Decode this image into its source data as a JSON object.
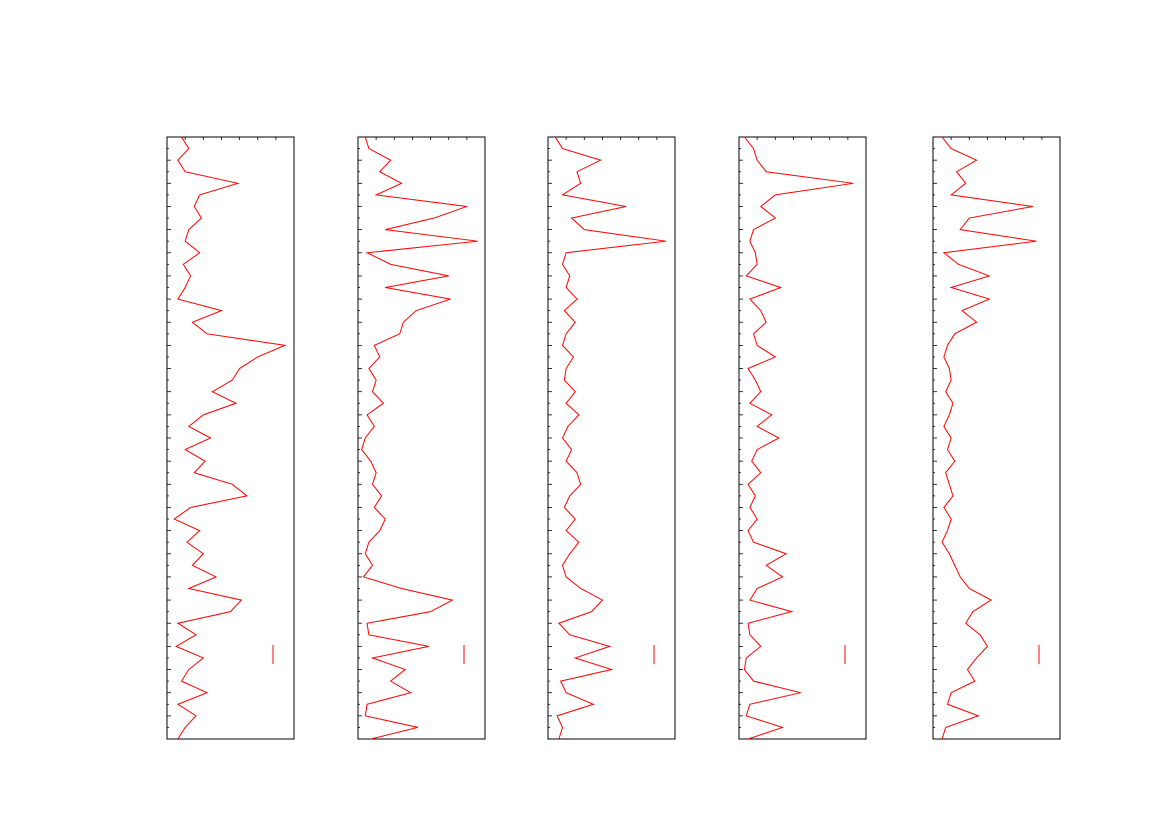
{
  "chart_data": [
    {
      "type": "line",
      "orientation": "vertical",
      "x": [
        0,
        1,
        2,
        3,
        4,
        5,
        6,
        7,
        8,
        9,
        10,
        11,
        12,
        13,
        14,
        15,
        16,
        17,
        18,
        19,
        20,
        21,
        22,
        23,
        24,
        25,
        26,
        27,
        28,
        29,
        30,
        31,
        32,
        33,
        34,
        35,
        36,
        37,
        38,
        39,
        40,
        41,
        42,
        43,
        44,
        45,
        46,
        47,
        48,
        49,
        50,
        51,
        52
      ],
      "series": [
        {
          "color": "#ff0000",
          "values": [
            0.8,
            1.2,
            0.6,
            1.0,
            3.9,
            1.8,
            1.5,
            1.9,
            1.2,
            1.0,
            1.8,
            0.9,
            1.3,
            1.0,
            0.6,
            3.0,
            1.4,
            2.2,
            6.5,
            5.0,
            4.0,
            3.6,
            2.5,
            3.8,
            2.0,
            1.2,
            2.4,
            1.0,
            2.1,
            1.5,
            3.6,
            4.4,
            1.3,
            0.4,
            1.8,
            1.1,
            2.0,
            1.4,
            2.7,
            1.2,
            4.1,
            3.5,
            0.6,
            1.6,
            0.5,
            2.0,
            1.2,
            0.8,
            2.2,
            0.6,
            1.6,
            1.0,
            0.6
          ]
        }
      ],
      "xlim": [
        0,
        52
      ],
      "ylim": [
        0,
        7
      ],
      "xticks": [
        0,
        1,
        2,
        3,
        4,
        5,
        6,
        7,
        8,
        9,
        10,
        11,
        12,
        13,
        14,
        15,
        16,
        17,
        18,
        19,
        20,
        21,
        22,
        23,
        24,
        25,
        26,
        27,
        28,
        29,
        30,
        31,
        32,
        33,
        34,
        35,
        36,
        37,
        38,
        39,
        40,
        41,
        42,
        43,
        44,
        45,
        46,
        47,
        48,
        49,
        50,
        51,
        52
      ],
      "yticks": [
        0,
        1,
        2,
        3,
        4,
        5,
        6,
        7
      ]
    },
    {
      "type": "line",
      "orientation": "vertical",
      "x": [
        0,
        1,
        2,
        3,
        4,
        5,
        6,
        7,
        8,
        9,
        10,
        11,
        12,
        13,
        14,
        15,
        16,
        17,
        18,
        19,
        20,
        21,
        22,
        23,
        24,
        25,
        26,
        27,
        28,
        29,
        30,
        31,
        32,
        33,
        34,
        35,
        36,
        37,
        38,
        39,
        40,
        41,
        42,
        43,
        44,
        45,
        46,
        47,
        48,
        49,
        50,
        51,
        52
      ],
      "series": [
        {
          "color": "#ff0000",
          "values": [
            0.4,
            0.6,
            1.8,
            1.2,
            2.4,
            1.0,
            6.0,
            4.2,
            1.5,
            6.6,
            0.5,
            1.8,
            5.0,
            1.5,
            5.1,
            3.2,
            2.5,
            2.3,
            0.9,
            1.2,
            0.6,
            1.0,
            0.8,
            1.4,
            0.5,
            0.9,
            0.4,
            0.2,
            0.7,
            1.0,
            0.8,
            1.3,
            0.9,
            1.5,
            1.2,
            0.6,
            0.4,
            0.8,
            0.3,
            2.4,
            5.2,
            4.0,
            0.5,
            0.6,
            3.9,
            0.8,
            2.6,
            1.8,
            2.9,
            0.5,
            0.4,
            3.3,
            0.7
          ]
        }
      ],
      "xlim": [
        0,
        52
      ],
      "ylim": [
        0,
        7
      ],
      "xticks": [
        0,
        1,
        2,
        3,
        4,
        5,
        6,
        7,
        8,
        9,
        10,
        11,
        12,
        13,
        14,
        15,
        16,
        17,
        18,
        19,
        20,
        21,
        22,
        23,
        24,
        25,
        26,
        27,
        28,
        29,
        30,
        31,
        32,
        33,
        34,
        35,
        36,
        37,
        38,
        39,
        40,
        41,
        42,
        43,
        44,
        45,
        46,
        47,
        48,
        49,
        50,
        51,
        52
      ],
      "yticks": [
        0,
        1,
        2,
        3,
        4,
        5,
        6,
        7
      ]
    },
    {
      "type": "line",
      "orientation": "vertical",
      "x": [
        0,
        1,
        2,
        3,
        4,
        5,
        6,
        7,
        8,
        9,
        10,
        11,
        12,
        13,
        14,
        15,
        16,
        17,
        18,
        19,
        20,
        21,
        22,
        23,
        24,
        25,
        26,
        27,
        28,
        29,
        30,
        31,
        32,
        33,
        34,
        35,
        36,
        37,
        38,
        39,
        40,
        41,
        42,
        43,
        44,
        45,
        46,
        47,
        48,
        49,
        50,
        51,
        52
      ],
      "series": [
        {
          "color": "#ff0000",
          "values": [
            0.4,
            0.8,
            2.9,
            1.6,
            1.8,
            0.8,
            4.3,
            1.3,
            2.0,
            6.5,
            1.0,
            0.8,
            1.2,
            1.0,
            1.6,
            0.9,
            1.5,
            1.0,
            0.8,
            1.4,
            1.0,
            0.9,
            1.5,
            1.0,
            1.7,
            1.1,
            0.8,
            1.3,
            1.0,
            1.6,
            1.8,
            1.2,
            0.9,
            1.5,
            1.0,
            1.7,
            1.2,
            0.8,
            1.0,
            1.8,
            3.0,
            2.4,
            0.6,
            1.2,
            3.4,
            1.5,
            3.5,
            0.7,
            1.0,
            2.5,
            0.5,
            0.8,
            0.6
          ]
        }
      ],
      "xlim": [
        0,
        52
      ],
      "ylim": [
        0,
        7
      ],
      "xticks": [
        0,
        1,
        2,
        3,
        4,
        5,
        6,
        7,
        8,
        9,
        10,
        11,
        12,
        13,
        14,
        15,
        16,
        17,
        18,
        19,
        20,
        21,
        22,
        23,
        24,
        25,
        26,
        27,
        28,
        29,
        30,
        31,
        32,
        33,
        34,
        35,
        36,
        37,
        38,
        39,
        40,
        41,
        42,
        43,
        44,
        45,
        46,
        47,
        48,
        49,
        50,
        51,
        52
      ],
      "yticks": [
        0,
        1,
        2,
        3,
        4,
        5,
        6,
        7
      ]
    },
    {
      "type": "line",
      "orientation": "vertical",
      "x": [
        0,
        1,
        2,
        3,
        4,
        5,
        6,
        7,
        8,
        9,
        10,
        11,
        12,
        13,
        14,
        15,
        16,
        17,
        18,
        19,
        20,
        21,
        22,
        23,
        24,
        25,
        26,
        27,
        28,
        29,
        30,
        31,
        32,
        33,
        34,
        35,
        36,
        37,
        38,
        39,
        40,
        41,
        42,
        43,
        44,
        45,
        46,
        47,
        48,
        49,
        50,
        51,
        52
      ],
      "series": [
        {
          "color": "#ff0000",
          "values": [
            0.3,
            0.8,
            1.0,
            1.5,
            6.3,
            2.0,
            1.2,
            2.0,
            0.8,
            0.6,
            0.9,
            1.0,
            0.4,
            2.3,
            0.6,
            1.2,
            1.5,
            0.8,
            1.0,
            2.0,
            0.5,
            0.9,
            1.2,
            0.6,
            1.8,
            1.0,
            2.2,
            1.0,
            0.7,
            1.2,
            0.5,
            0.9,
            0.6,
            1.0,
            0.5,
            0.8,
            2.6,
            1.5,
            2.4,
            1.0,
            0.6,
            2.9,
            0.5,
            0.6,
            1.2,
            0.4,
            0.3,
            0.8,
            3.4,
            0.6,
            0.4,
            2.4,
            0.5
          ]
        }
      ],
      "xlim": [
        0,
        52
      ],
      "ylim": [
        0,
        7
      ],
      "xticks": [
        0,
        1,
        2,
        3,
        4,
        5,
        6,
        7,
        8,
        9,
        10,
        11,
        12,
        13,
        14,
        15,
        16,
        17,
        18,
        19,
        20,
        21,
        22,
        23,
        24,
        25,
        26,
        27,
        28,
        29,
        30,
        31,
        32,
        33,
        34,
        35,
        36,
        37,
        38,
        39,
        40,
        41,
        42,
        43,
        44,
        45,
        46,
        47,
        48,
        49,
        50,
        51,
        52
      ],
      "yticks": [
        0,
        1,
        2,
        3,
        4,
        5,
        6,
        7
      ]
    },
    {
      "type": "line",
      "orientation": "vertical",
      "x": [
        0,
        1,
        2,
        3,
        4,
        5,
        6,
        7,
        8,
        9,
        10,
        11,
        12,
        13,
        14,
        15,
        16,
        17,
        18,
        19,
        20,
        21,
        22,
        23,
        24,
        25,
        26,
        27,
        28,
        29,
        30,
        31,
        32,
        33,
        34,
        35,
        36,
        37,
        38,
        39,
        40,
        41,
        42,
        43,
        44,
        45,
        46,
        47,
        48,
        49,
        50,
        51,
        52
      ],
      "series": [
        {
          "color": "#ff0000",
          "values": [
            0.5,
            1.0,
            2.4,
            1.3,
            1.8,
            1.0,
            5.5,
            2.0,
            1.5,
            5.7,
            0.6,
            1.4,
            3.1,
            1.0,
            3.1,
            1.6,
            2.4,
            1.2,
            0.8,
            0.6,
            0.9,
            1.0,
            0.7,
            1.1,
            0.9,
            0.6,
            1.0,
            0.8,
            1.2,
            0.7,
            0.9,
            1.1,
            0.6,
            1.0,
            0.8,
            0.5,
            0.9,
            1.2,
            1.5,
            2.0,
            3.2,
            2.2,
            1.8,
            2.6,
            3.0,
            2.4,
            1.9,
            2.3,
            1.0,
            0.8,
            2.5,
            0.7,
            0.5
          ]
        }
      ],
      "xlim": [
        0,
        52
      ],
      "ylim": [
        0,
        7
      ],
      "xticks": [
        0,
        1,
        2,
        3,
        4,
        5,
        6,
        7,
        8,
        9,
        10,
        11,
        12,
        13,
        14,
        15,
        16,
        17,
        18,
        19,
        20,
        21,
        22,
        23,
        24,
        25,
        26,
        27,
        28,
        29,
        30,
        31,
        32,
        33,
        34,
        35,
        36,
        37,
        38,
        39,
        40,
        41,
        42,
        43,
        44,
        45,
        46,
        47,
        48,
        49,
        50,
        51,
        52
      ],
      "yticks": [
        0,
        1,
        2,
        3,
        4,
        5,
        6,
        7
      ]
    }
  ]
}
